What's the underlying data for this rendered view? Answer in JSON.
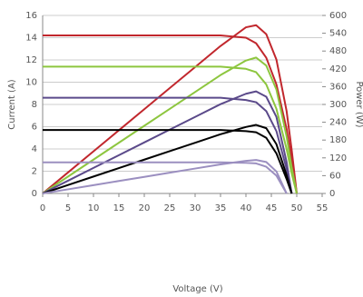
{
  "chart_data": {
    "type": "line",
    "xlabel": "Voltage (V)",
    "ylabel": "Current (A)",
    "y2label": "Power (W)",
    "x": [
      0,
      5,
      10,
      15,
      20,
      25,
      30,
      35,
      40,
      42,
      44,
      46,
      48,
      49,
      50
    ],
    "xlim": [
      0,
      55
    ],
    "xticks": [
      0,
      5,
      10,
      15,
      20,
      25,
      30,
      35,
      40,
      45,
      50,
      55
    ],
    "ylim": [
      0,
      16
    ],
    "yticks": [
      0,
      2,
      4,
      6,
      8,
      10,
      12,
      14,
      16
    ],
    "y2lim": [
      0,
      600
    ],
    "y2ticks": [
      0,
      60,
      120,
      180,
      240,
      300,
      360,
      420,
      480,
      540,
      600
    ],
    "grid": true,
    "series": [
      {
        "color": "#c1272d",
        "values": [
          14.2,
          14.2,
          14.2,
          14.2,
          14.2,
          14.2,
          14.2,
          14.2,
          14.0,
          13.5,
          12.2,
          9.8,
          5.8,
          3.0,
          0
        ]
      },
      {
        "color": "#c1272d",
        "axis": "y2",
        "values": [
          0,
          71,
          142,
          213,
          284,
          355,
          426,
          497,
          560,
          567,
          537,
          451,
          278,
          147,
          0
        ]
      },
      {
        "color": "#8dc63f",
        "values": [
          11.4,
          11.4,
          11.4,
          11.4,
          11.4,
          11.4,
          11.4,
          11.4,
          11.2,
          10.9,
          9.8,
          7.6,
          4.0,
          1.8,
          0
        ]
      },
      {
        "color": "#8dc63f",
        "axis": "y2",
        "values": [
          0,
          57,
          114,
          171,
          228,
          285,
          342,
          399,
          448,
          458,
          431,
          350,
          192,
          88,
          0
        ]
      },
      {
        "color": "#5b4a8a",
        "values": [
          8.6,
          8.6,
          8.6,
          8.6,
          8.6,
          8.6,
          8.6,
          8.6,
          8.4,
          8.2,
          7.4,
          5.6,
          2.2,
          0,
          null
        ]
      },
      {
        "color": "#5b4a8a",
        "axis": "y2",
        "values": [
          0,
          43,
          86,
          129,
          172,
          215,
          258,
          301,
          336,
          344,
          326,
          258,
          106,
          0,
          null
        ]
      },
      {
        "color": "#000000",
        "values": [
          5.7,
          5.7,
          5.7,
          5.7,
          5.7,
          5.7,
          5.7,
          5.7,
          5.6,
          5.5,
          5.0,
          3.6,
          1.3,
          0,
          null
        ]
      },
      {
        "color": "#000000",
        "axis": "y2",
        "values": [
          0,
          28.5,
          57,
          85.5,
          114,
          142.5,
          171,
          199.5,
          224,
          231,
          220,
          166,
          62,
          0,
          null
        ]
      },
      {
        "color": "#9b8fc0",
        "values": [
          2.8,
          2.8,
          2.8,
          2.8,
          2.8,
          2.8,
          2.8,
          2.8,
          2.75,
          2.7,
          2.4,
          1.6,
          0,
          null,
          null
        ]
      },
      {
        "color": "#9b8fc0",
        "axis": "y2",
        "values": [
          0,
          14,
          28,
          42,
          56,
          70,
          84,
          98,
          110,
          113,
          106,
          74,
          0,
          null,
          null
        ]
      }
    ]
  }
}
